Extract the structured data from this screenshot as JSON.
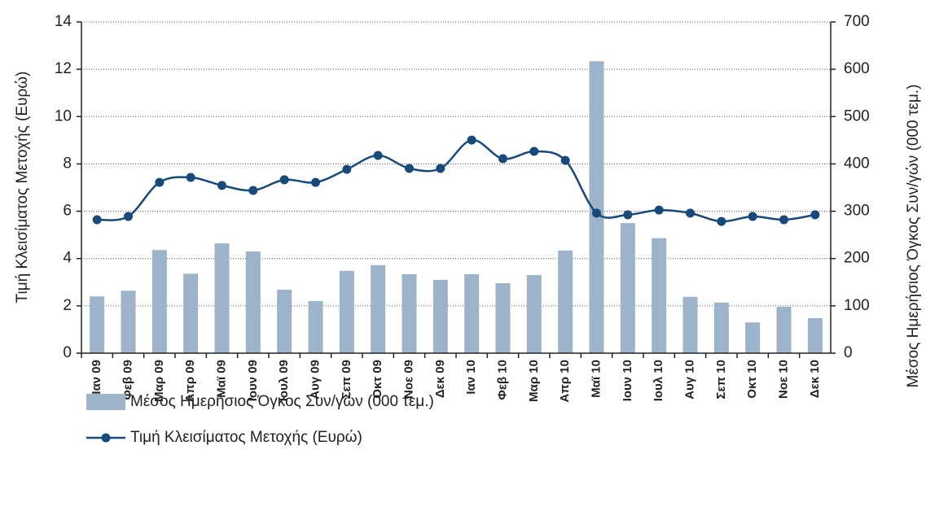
{
  "chart_data": {
    "type": "combo",
    "categories": [
      "Ιαν 09",
      "Φεβ 09",
      "Μαρ 09",
      "Απρ 09",
      "Μαϊ 09",
      "Ιουν 09",
      "Ιουλ 09",
      "Αυγ 09",
      "Σεπ 09",
      "Οκτ 09",
      "Νοε 09",
      "Δεκ 09",
      "Ιαν 10",
      "Φεβ 10",
      "Μαρ 10",
      "Απρ 10",
      "Μαϊ 10",
      "Ιουν 10",
      "Ιουλ 10",
      "Αυγ 10",
      "Σεπ 10",
      "Οκτ 10",
      "Νοε 10",
      "Δεκ 10"
    ],
    "series": [
      {
        "name": "Μέσος Ημερήσιος Όγκος Συν/γών (000 τεμ.)",
        "type": "bar",
        "axis": "y2",
        "color": "#9cb3c9",
        "values": [
          120,
          132,
          218,
          168,
          232,
          215,
          134,
          110,
          174,
          186,
          167,
          155,
          167,
          148,
          165,
          217,
          617,
          275,
          243,
          119,
          107,
          65,
          98,
          74
        ]
      },
      {
        "name": "Τιμή Κλεισίματος Μετοχής (Ευρώ)",
        "type": "line",
        "axis": "y",
        "color": "#17497a",
        "values": [
          5.64,
          5.78,
          7.22,
          7.43,
          7.09,
          6.88,
          7.33,
          7.22,
          7.77,
          8.36,
          7.81,
          7.81,
          9.01,
          8.22,
          8.53,
          8.15,
          5.92,
          5.85,
          6.05,
          5.92,
          5.57,
          5.78,
          5.64,
          5.85
        ]
      }
    ],
    "ylabel": "Τιμή Κλεισίματος Μετοχής (Ευρώ)",
    "y2label": "Μέσος Ημερήσιος Όγκος Συν/γών (000 τεμ.)",
    "ylim": [
      0,
      14
    ],
    "yticks": [
      0,
      2,
      4,
      6,
      8,
      10,
      12,
      14
    ],
    "y2lim": [
      0,
      700
    ],
    "y2ticks": [
      0,
      100,
      200,
      300,
      400,
      500,
      600,
      700
    ],
    "grid": true
  }
}
